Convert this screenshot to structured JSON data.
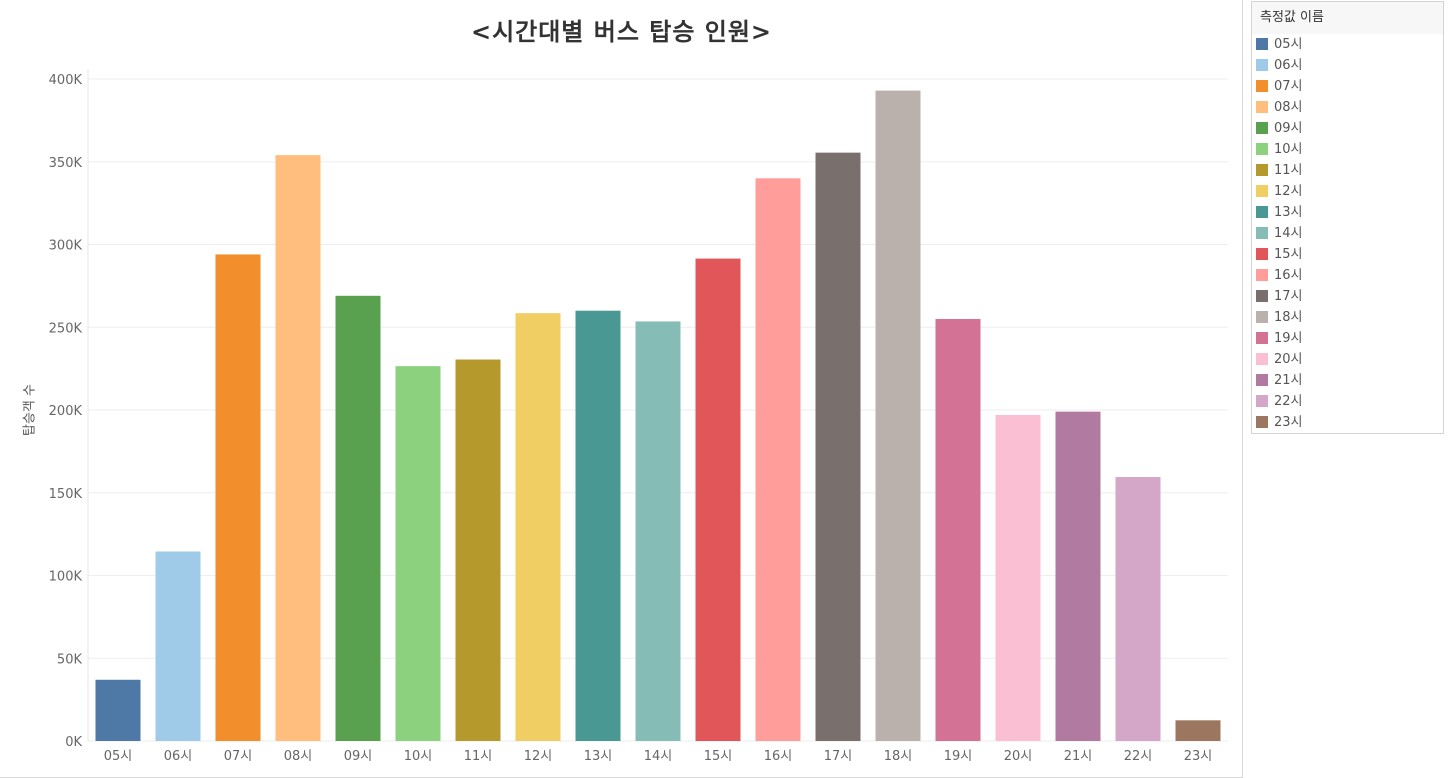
{
  "chart_data": {
    "type": "bar",
    "title": "<시간대별 버스 탑승 인원>",
    "xlabel": "",
    "ylabel": "탑승객 수",
    "ylim": [
      0,
      400000
    ],
    "yticks": [
      0,
      50000,
      100000,
      150000,
      200000,
      250000,
      300000,
      350000,
      400000
    ],
    "ytick_labels": [
      "0K",
      "50K",
      "100K",
      "150K",
      "200K",
      "250K",
      "300K",
      "350K",
      "400K"
    ],
    "grid": true,
    "legend_title": "측정값 이름",
    "legend_position": "right",
    "categories": [
      "05시",
      "06시",
      "07시",
      "08시",
      "09시",
      "10시",
      "11시",
      "12시",
      "13시",
      "14시",
      "15시",
      "16시",
      "17시",
      "18시",
      "19시",
      "20시",
      "21시",
      "22시",
      "23시"
    ],
    "values": [
      37000,
      114500,
      294000,
      354000,
      269000,
      226500,
      230500,
      258500,
      260000,
      253500,
      291500,
      340000,
      355500,
      393000,
      255000,
      197000,
      199000,
      159500,
      12500
    ],
    "colors": [
      "#4e79a7",
      "#a0cbe8",
      "#f28e2b",
      "#ffbe7d",
      "#59a14f",
      "#8cd17d",
      "#b6992d",
      "#f1ce63",
      "#499894",
      "#86bcb6",
      "#e15759",
      "#ff9d9a",
      "#79706e",
      "#bab0ac",
      "#d37295",
      "#fabfd2",
      "#b07aa1",
      "#d4a6c8",
      "#9d7660"
    ]
  }
}
